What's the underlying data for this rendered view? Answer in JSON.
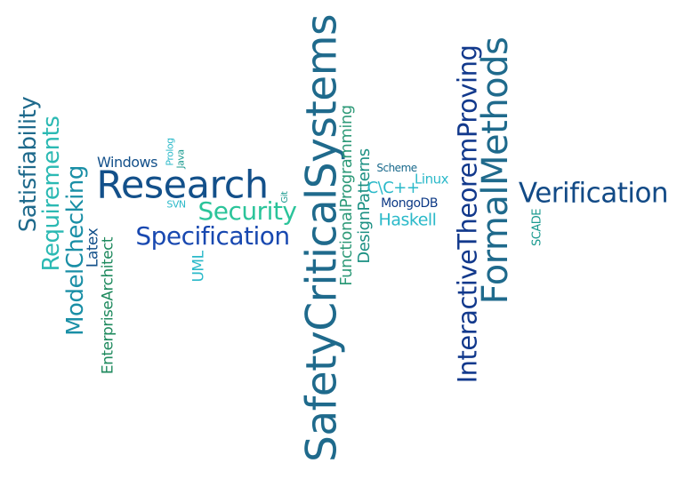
{
  "colors": {
    "background": "#ffffff",
    "palette": [
      "#0e4e87",
      "#1a9a8f",
      "#2bb9b3",
      "#1f6a8c",
      "#12398c",
      "#1abc9c"
    ]
  },
  "words": [
    {
      "id": "safety",
      "text": "SafetyCriticalSystems",
      "orientation": "vertical",
      "color": "#1f6a8c"
    },
    {
      "id": "research",
      "text": "Research",
      "orientation": "horizontal",
      "color": "#13508a"
    },
    {
      "id": "formal",
      "text": "FormalMethods",
      "orientation": "vertical",
      "color": "#1f6a8c"
    },
    {
      "id": "verification",
      "text": "Verification",
      "orientation": "horizontal",
      "color": "#124a86"
    },
    {
      "id": "itp",
      "text": "InteractiveTheoremProving",
      "orientation": "vertical",
      "color": "#12398c"
    },
    {
      "id": "spec",
      "text": "Specification",
      "orientation": "horizontal",
      "color": "#1848b0"
    },
    {
      "id": "security",
      "text": "Security",
      "orientation": "horizontal",
      "color": "#2bc49a"
    },
    {
      "id": "modelcheck",
      "text": "ModelChecking",
      "orientation": "vertical",
      "color": "#1a8fa6"
    },
    {
      "id": "requirements",
      "text": "Requirements",
      "orientation": "vertical",
      "color": "#2bb9b3"
    },
    {
      "id": "satisfiab",
      "text": "Satisfiability",
      "orientation": "vertical",
      "color": "#1f6a8c"
    },
    {
      "id": "funcprog",
      "text": "FunctionalProgramming",
      "orientation": "vertical",
      "color": "#2e9a78"
    },
    {
      "id": "designpat",
      "text": "DesignPatterns",
      "orientation": "vertical",
      "color": "#1a8f82"
    },
    {
      "id": "enterprise",
      "text": "EnterpriseArchitect",
      "orientation": "vertical",
      "color": "#1f8a5e"
    },
    {
      "id": "haskell",
      "text": "Haskell",
      "orientation": "horizontal",
      "color": "#2bb9c9"
    },
    {
      "id": "latex",
      "text": "Latex",
      "orientation": "vertical",
      "color": "#13508a"
    },
    {
      "id": "windows",
      "text": "Windows",
      "orientation": "horizontal",
      "color": "#13508a"
    },
    {
      "id": "cc",
      "text": "C\\C++",
      "orientation": "horizontal",
      "color": "#2bb9c9"
    },
    {
      "id": "mongodb",
      "text": "MongoDB",
      "orientation": "horizontal",
      "color": "#0e3a86"
    },
    {
      "id": "linux",
      "text": "Linux",
      "orientation": "horizontal",
      "color": "#2bb9c9"
    },
    {
      "id": "scheme",
      "text": "Scheme",
      "orientation": "horizontal",
      "color": "#1a6a8c"
    },
    {
      "id": "uml",
      "text": "UML",
      "orientation": "vertical",
      "color": "#2bb9c9"
    },
    {
      "id": "scade",
      "text": "SCADE",
      "orientation": "vertical",
      "color": "#1a9a8f"
    },
    {
      "id": "prolog",
      "text": "Prolog",
      "orientation": "vertical",
      "color": "#2bb9c9"
    },
    {
      "id": "java",
      "text": "Java",
      "orientation": "vertical",
      "color": "#1a9a8f"
    },
    {
      "id": "git",
      "text": "Git",
      "orientation": "vertical",
      "color": "#1a9a8f"
    },
    {
      "id": "svn",
      "text": "SVN",
      "orientation": "horizontal",
      "color": "#2bb9c9"
    }
  ]
}
